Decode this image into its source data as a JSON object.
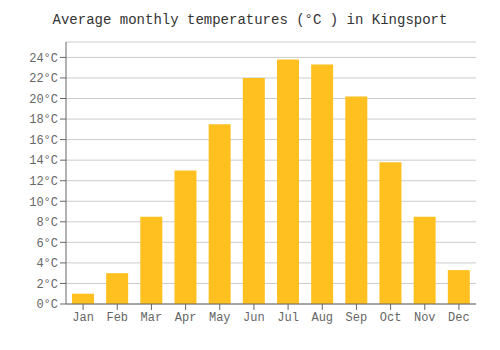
{
  "chart_data": {
    "type": "bar",
    "title": "Average monthly temperatures (°C ) in Kingsport",
    "categories": [
      "Jan",
      "Feb",
      "Mar",
      "Apr",
      "May",
      "Jun",
      "Jul",
      "Aug",
      "Sep",
      "Oct",
      "Nov",
      "Dec"
    ],
    "values": [
      1,
      3,
      8.5,
      13,
      17.5,
      22,
      23.8,
      23.3,
      20.2,
      13.8,
      8.5,
      3.3
    ],
    "color": "#FFC020",
    "ylim": [
      0,
      25.5
    ],
    "yticks": [
      {
        "value": 0,
        "label": "0°C"
      },
      {
        "value": 2,
        "label": "2°C"
      },
      {
        "value": 4,
        "label": "4°C"
      },
      {
        "value": 6,
        "label": "6°C"
      },
      {
        "value": 8,
        "label": "8°C"
      },
      {
        "value": 10,
        "label": "10°C"
      },
      {
        "value": 12,
        "label": "12°C"
      },
      {
        "value": 14,
        "label": "14°C"
      },
      {
        "value": 16,
        "label": "16°C"
      },
      {
        "value": 18,
        "label": "18°C"
      },
      {
        "value": 20,
        "label": "20°C"
      },
      {
        "value": 22,
        "label": "22°C"
      },
      {
        "value": 24,
        "label": "24°C"
      }
    ],
    "grid": true
  }
}
